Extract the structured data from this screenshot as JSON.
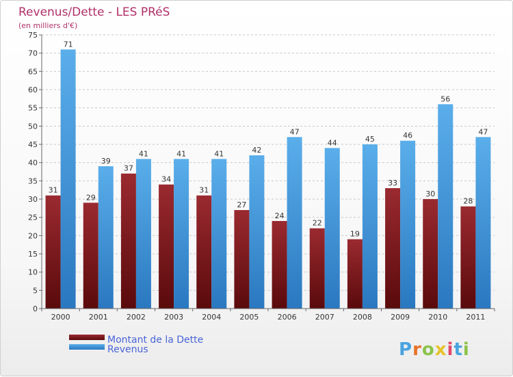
{
  "chart_data": {
    "type": "bar",
    "title": "Revenus/Dette - LES PRéS",
    "subtitle": "(en milliers d'€)",
    "categories": [
      "2000",
      "2001",
      "2002",
      "2003",
      "2004",
      "2005",
      "2006",
      "2007",
      "2008",
      "2009",
      "2010",
      "2011"
    ],
    "series": [
      {
        "name": "Montant de la Dette",
        "values": [
          31,
          29,
          37,
          34,
          31,
          27,
          24,
          22,
          19,
          33,
          30,
          28
        ],
        "color": "#7a1418"
      },
      {
        "name": "Revenus",
        "values": [
          71,
          39,
          41,
          41,
          41,
          42,
          47,
          44,
          45,
          46,
          56,
          47
        ],
        "color": "#4a9ee0"
      }
    ],
    "ylim": [
      0,
      75
    ],
    "yticks": [
      0,
      5,
      10,
      15,
      20,
      25,
      30,
      35,
      40,
      45,
      50,
      55,
      60,
      65,
      70,
      75
    ],
    "grid": true,
    "legend_position": "bottom-left"
  },
  "logo": {
    "text": "Proxiti",
    "colors": [
      "#4aa3df",
      "#e8732a",
      "#8bc34a",
      "#e8c22a",
      "#e04a6a",
      "#4aa3df",
      "#8bc34a"
    ]
  }
}
